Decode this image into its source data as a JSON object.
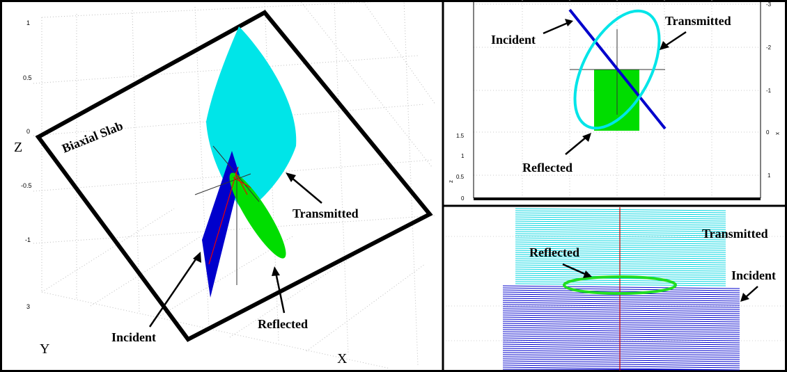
{
  "panel_main": {
    "slab_label": "Biaxial Slab",
    "labels": {
      "transmitted": "Transmitted",
      "incident": "Incident",
      "reflected": "Reflected"
    },
    "axes": {
      "z": "Z",
      "y": "Y",
      "x": "X"
    },
    "z_ticks": [
      "1",
      "0.5",
      "0",
      "-0.5",
      "-1"
    ],
    "y_tick": "3"
  },
  "panel_top_right": {
    "labels": {
      "incident": "Incident",
      "transmitted": "Transmitted",
      "reflected": "Reflected"
    },
    "right_ticks": [
      "-3",
      "-2",
      "-1",
      "0",
      "1"
    ],
    "right_axis_label": "x",
    "left_ticks": [
      "1.5",
      "1",
      "0.5",
      "0"
    ],
    "left_axis_label": "z"
  },
  "panel_bottom_right": {
    "labels": {
      "transmitted": "Transmitted",
      "reflected": "Reflected",
      "incident": "Incident"
    }
  },
  "colors": {
    "transmitted": "#00e5e8",
    "incident": "#0000cc",
    "reflected": "#00dd00",
    "frame": "#000000",
    "grid": "#b8b8b8"
  }
}
